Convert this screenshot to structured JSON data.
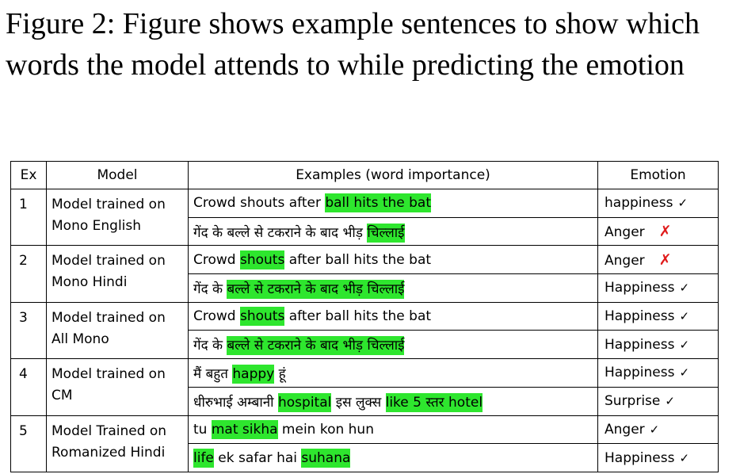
{
  "caption": {
    "text": "Figure 2: Figure shows example sentences to show which words the model attends to while predicting the emotion"
  },
  "table": {
    "headers": [
      "Ex",
      "Model",
      "Examples (word importance)",
      "Emotion"
    ],
    "highlight_color": "#2ee62e",
    "cross_color": "#e01b1b",
    "rows": [
      {
        "ex": "1",
        "model": [
          "Model trained on",
          "Mono English"
        ],
        "examples": [
          {
            "tokens": [
              {
                "t": "Crowd shouts after ",
                "h": false
              },
              {
                "t": "ball hits the bat",
                "h": true
              }
            ],
            "emotion": "happiness",
            "mark": "✓"
          },
          {
            "tokens": [
              {
                "t": "गेंद के बल्ले से टकराने के बाद भीड़ ",
                "h": false
              },
              {
                "t": "चिल्लाई",
                "h": true
              }
            ],
            "emotion": "Anger",
            "mark": "✗"
          }
        ]
      },
      {
        "ex": "2",
        "model": [
          "Model trained on",
          "Mono Hindi"
        ],
        "examples": [
          {
            "tokens": [
              {
                "t": "Crowd ",
                "h": false
              },
              {
                "t": "shouts",
                "h": true
              },
              {
                "t": " after ball hits the bat",
                "h": false
              }
            ],
            "emotion": "Anger",
            "mark": "✗"
          },
          {
            "tokens": [
              {
                "t": "गेंद के ",
                "h": false
              },
              {
                "t": "बल्ले से टकराने के बाद भीड़ चिल्लाई",
                "h": true
              }
            ],
            "emotion": "Happiness",
            "mark": "✓"
          }
        ]
      },
      {
        "ex": "3",
        "model": [
          "Model trained on",
          "All Mono"
        ],
        "examples": [
          {
            "tokens": [
              {
                "t": "Crowd ",
                "h": false
              },
              {
                "t": "shouts",
                "h": true
              },
              {
                "t": " after ball hits the bat",
                "h": false
              }
            ],
            "emotion": "Happiness",
            "mark": "✓"
          },
          {
            "tokens": [
              {
                "t": "गेंद के ",
                "h": false
              },
              {
                "t": "बल्ले से टकराने के बाद भीड़ चिल्लाई",
                "h": true
              }
            ],
            "emotion": "Happiness",
            "mark": "✓"
          }
        ]
      },
      {
        "ex": "4",
        "model": [
          "Model trained on",
          "CM"
        ],
        "examples": [
          {
            "tokens": [
              {
                "t": "मैं बहुत ",
                "h": false
              },
              {
                "t": "happy",
                "h": true
              },
              {
                "t": " हूं",
                "h": false
              }
            ],
            "emotion": "Happiness",
            "mark": "✓"
          },
          {
            "tokens": [
              {
                "t": "धीरुभाई अम्बानी ",
                "h": false
              },
              {
                "t": "hospital",
                "h": true
              },
              {
                "t": " इस लुक्स ",
                "h": false
              },
              {
                "t": "like 5 स्तर hotel",
                "h": true
              }
            ],
            "emotion": "Surprise",
            "mark": "✓"
          }
        ]
      },
      {
        "ex": "5",
        "model": [
          "Model Trained on",
          "Romanized Hindi"
        ],
        "examples": [
          {
            "tokens": [
              {
                "t": "tu ",
                "h": false
              },
              {
                "t": "mat sikha",
                "h": true
              },
              {
                "t": " mein kon hun",
                "h": false
              }
            ],
            "emotion": "Anger",
            "mark": "✓"
          },
          {
            "tokens": [
              {
                "t": "life",
                "h": true
              },
              {
                "t": " ek safar hai ",
                "h": false
              },
              {
                "t": "suhana",
                "h": true
              }
            ],
            "emotion": "Happiness",
            "mark": "✓"
          }
        ]
      }
    ]
  }
}
